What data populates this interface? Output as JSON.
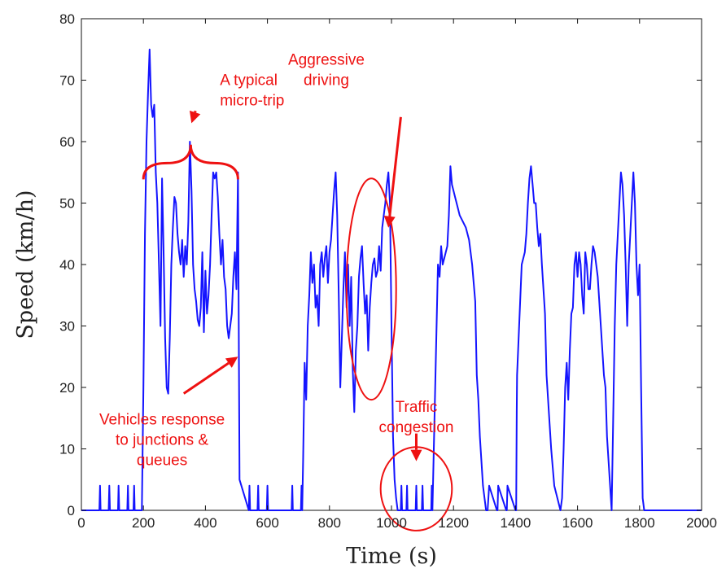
{
  "chart_data": {
    "type": "line",
    "title": "",
    "xlabel": "Time (s)",
    "ylabel": "Speed (km/h)",
    "xlim": [
      0,
      2000
    ],
    "ylim": [
      0,
      80
    ],
    "xticks": [
      0,
      200,
      400,
      600,
      800,
      1000,
      1200,
      1400,
      1600,
      1800,
      2000
    ],
    "yticks": [
      0,
      10,
      20,
      30,
      40,
      50,
      60,
      70,
      80
    ],
    "grid": false,
    "line_color": "#1414ff",
    "annotation_color": "#ee1111",
    "series": [
      {
        "x": [
          0,
          58,
          60,
          62,
          88,
          90,
          92,
          118,
          120,
          122,
          148,
          150,
          152,
          168,
          170,
          172,
          195,
          200,
          205,
          210,
          215,
          220,
          225,
          230,
          235,
          240,
          245,
          250,
          255,
          260,
          265,
          270,
          275,
          280,
          285,
          290,
          295,
          300,
          305,
          310,
          315,
          320,
          325,
          330,
          335,
          340,
          345,
          350,
          355,
          360,
          365,
          370,
          375,
          380,
          385,
          390,
          395,
          400,
          405,
          410,
          415,
          420,
          425,
          430,
          435,
          440,
          445,
          450,
          455,
          460,
          465,
          470,
          475,
          480,
          485,
          490,
          495,
          500,
          505,
          510,
          540,
          542,
          544,
          568,
          570,
          572,
          598,
          600,
          602,
          678,
          680,
          682,
          708,
          710,
          712,
          715,
          720,
          725,
          730,
          735,
          740,
          745,
          750,
          755,
          760,
          765,
          770,
          775,
          780,
          785,
          790,
          795,
          800,
          805,
          810,
          815,
          820,
          825,
          830,
          835,
          840,
          845,
          850,
          855,
          860,
          865,
          870,
          875,
          880,
          885,
          890,
          895,
          900,
          905,
          910,
          915,
          920,
          925,
          930,
          935,
          940,
          945,
          950,
          955,
          960,
          965,
          970,
          975,
          980,
          985,
          990,
          995,
          1000,
          1005,
          1010,
          1015,
          1020,
          1030,
          1032,
          1034,
          1048,
          1050,
          1052,
          1078,
          1080,
          1082,
          1098,
          1100,
          1102,
          1128,
          1130,
          1132,
          1150,
          1155,
          1160,
          1165,
          1170,
          1175,
          1180,
          1185,
          1190,
          1195,
          1200,
          1205,
          1210,
          1215,
          1220,
          1230,
          1240,
          1250,
          1260,
          1270,
          1275,
          1280,
          1285,
          1290,
          1295,
          1300,
          1305,
          1310,
          1315,
          1340,
          1342,
          1344,
          1370,
          1372,
          1374,
          1400,
          1402,
          1404,
          1405,
          1410,
          1415,
          1420,
          1425,
          1430,
          1435,
          1440,
          1445,
          1450,
          1455,
          1460,
          1465,
          1470,
          1475,
          1480,
          1485,
          1490,
          1495,
          1500,
          1505,
          1510,
          1515,
          1520,
          1525,
          1530,
          1535,
          1540,
          1545,
          1550,
          1555,
          1560,
          1565,
          1570,
          1575,
          1580,
          1585,
          1590,
          1595,
          1600,
          1605,
          1610,
          1615,
          1620,
          1625,
          1630,
          1635,
          1640,
          1645,
          1650,
          1655,
          1660,
          1665,
          1670,
          1675,
          1680,
          1685,
          1690,
          1695,
          1700,
          1705,
          1710,
          1715,
          1720,
          1725,
          1730,
          1735,
          1740,
          1745,
          1750,
          1755,
          1760,
          1765,
          1770,
          1775,
          1780,
          1785,
          1790,
          1795,
          1800,
          1805,
          1810,
          1815,
          2000
        ],
        "y": [
          0,
          0,
          4,
          0,
          0,
          4,
          0,
          0,
          4,
          0,
          0,
          4,
          0,
          0,
          4,
          0,
          0,
          20,
          45,
          60,
          68,
          75,
          66,
          64,
          66,
          55,
          50,
          40,
          30,
          54,
          42,
          28,
          20,
          19,
          28,
          40,
          46,
          51,
          50,
          45,
          42,
          40,
          44,
          38,
          43,
          40,
          47,
          60,
          52,
          40,
          36,
          34,
          31,
          30,
          33,
          42,
          29,
          39,
          32,
          35,
          40,
          48,
          55,
          54,
          55,
          51,
          45,
          40,
          44,
          38,
          36,
          30,
          28,
          30,
          32,
          38,
          42,
          36,
          55,
          5,
          0,
          4,
          0,
          0,
          4,
          0,
          0,
          4,
          0,
          0,
          4,
          0,
          0,
          4,
          0,
          8,
          24,
          18,
          30,
          35,
          42,
          37,
          40,
          33,
          35,
          30,
          40,
          42,
          38,
          41,
          43,
          37,
          42,
          44,
          48,
          52,
          55,
          48,
          35,
          20,
          28,
          36,
          42,
          33,
          40,
          30,
          38,
          23,
          16,
          26,
          30,
          38,
          41,
          43,
          37,
          32,
          35,
          26,
          33,
          37,
          40,
          41,
          38,
          39,
          43,
          39,
          46,
          48,
          50,
          53,
          55,
          50,
          30,
          12,
          5,
          2,
          0,
          0,
          4,
          0,
          0,
          4,
          0,
          0,
          4,
          0,
          0,
          4,
          0,
          0,
          4,
          0,
          40,
          38,
          43,
          40,
          41,
          42,
          43,
          48,
          56,
          53,
          52,
          51,
          50,
          49,
          48,
          47,
          46,
          44,
          40,
          34,
          22,
          18,
          12,
          8,
          4,
          2,
          0,
          0,
          4,
          0,
          0,
          4,
          0,
          0,
          4,
          0,
          0,
          16,
          22,
          28,
          34,
          40,
          41,
          42,
          45,
          50,
          54,
          56,
          53,
          50,
          50,
          46,
          43,
          45,
          40,
          36,
          32,
          22,
          18,
          14,
          10,
          7,
          4,
          3,
          2,
          1,
          0,
          2,
          10,
          20,
          24,
          18,
          26,
          32,
          33,
          40,
          42,
          38,
          42,
          40,
          35,
          32,
          42,
          40,
          36,
          36,
          40,
          43,
          42,
          40,
          38,
          34,
          30,
          26,
          22,
          20,
          12,
          8,
          4,
          0,
          15,
          30,
          40,
          45,
          50,
          55,
          53,
          48,
          40,
          30,
          40,
          45,
          50,
          55,
          50,
          40,
          35,
          40,
          20,
          2,
          0,
          0
        ]
      }
    ],
    "annotations": [
      {
        "kind": "bracket",
        "x_range": [
          200,
          505
        ],
        "y": 56.5,
        "tip_y": 59.5
      },
      {
        "kind": "arrow",
        "from": [
          368,
          65
        ],
        "to": [
          355,
          63
        ],
        "text": "A typical\nmicro-trip"
      },
      {
        "kind": "text",
        "x": 790,
        "y": 72.5,
        "text": "Aggressive\ndriving"
      },
      {
        "kind": "arrow",
        "from": [
          1030,
          64
        ],
        "to": [
          990,
          46
        ],
        "text": ""
      },
      {
        "kind": "ellipse",
        "cx": 935,
        "cy": 36,
        "rx": 80,
        "ry": 18
      },
      {
        "kind": "arrow",
        "from": [
          330,
          19
        ],
        "to": [
          505,
          25
        ],
        "text": ""
      },
      {
        "kind": "text",
        "x": 260,
        "y": 14,
        "text": "Vehicles response\nto junctions &\nqueues"
      },
      {
        "kind": "text",
        "x": 1080,
        "y": 16,
        "text": "Traffic\ncongestion"
      },
      {
        "kind": "arrow",
        "from": [
          1080,
          12.5
        ],
        "to": [
          1080,
          8
        ],
        "text": ""
      },
      {
        "kind": "ellipse",
        "cx": 1080,
        "cy": 3.5,
        "rx": 115,
        "ry": 6.8
      }
    ]
  }
}
